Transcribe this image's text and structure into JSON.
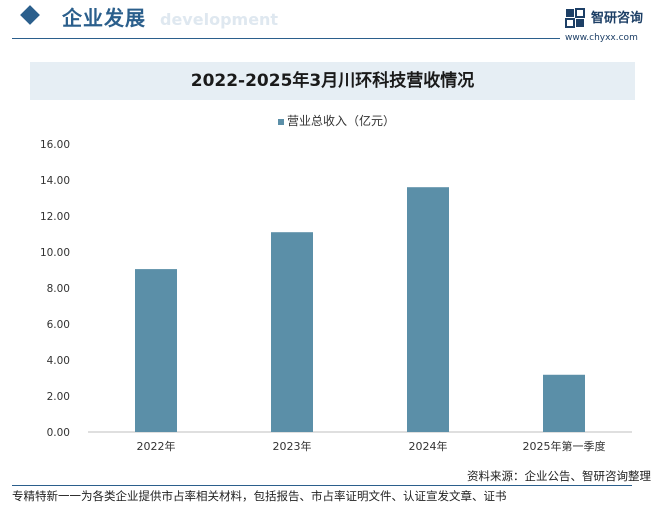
{
  "header": {
    "section_title": "企业发展",
    "section_subtitle": "development",
    "logo_name": "智研咨询",
    "logo_url": "www.chyxx.com"
  },
  "chart_data": {
    "type": "bar",
    "title": "2022-2025年3月川环科技营收情况",
    "categories": [
      "2022年",
      "2023年",
      "2024年",
      "2025年第一季度"
    ],
    "series": [
      {
        "name": "营业总收入（亿元）",
        "values": [
          9.05,
          11.1,
          13.6,
          3.18
        ]
      }
    ],
    "yticks": [
      "0.00",
      "2.00",
      "4.00",
      "6.00",
      "8.00",
      "10.00",
      "12.00",
      "14.00",
      "16.00"
    ],
    "ylim": [
      0,
      16
    ],
    "xlabel": "",
    "ylabel": "",
    "legend_position": "top-center",
    "grid": false,
    "bar_color": "#5b8fa8"
  },
  "footer": {
    "source": "资料来源：企业公告、智研咨询整理",
    "tagline": "专精特新一一为各类企业提供市占率相关材料，包括报告、市占率证明文件、认证宣发文章、证书"
  }
}
